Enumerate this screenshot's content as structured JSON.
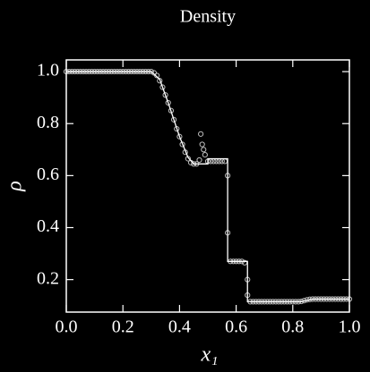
{
  "chart_data": {
    "type": "line-scatter",
    "title": "Density",
    "xlabel": "x₁",
    "ylabel": "ρ",
    "xlim": [
      0,
      1
    ],
    "ylim": [
      0.075,
      1.045
    ],
    "xticks": [
      {
        "value": 0,
        "label": "0.0"
      },
      0.2,
      0.4,
      0.6,
      0.8,
      {
        "value": 1,
        "label": "1.0"
      }
    ],
    "yticks": [
      0.2,
      0.4,
      0.6,
      0.8,
      {
        "value": 1,
        "label": "1.0"
      }
    ],
    "line": {
      "color": "#ffffff",
      "x": [
        0,
        0.3,
        0.33,
        0.36,
        0.4,
        0.43,
        0.45,
        0.5,
        0.5,
        0.57,
        0.57,
        0.64,
        0.64,
        0.83,
        0.87,
        1.0
      ],
      "y": [
        1,
        1,
        0.97,
        0.88,
        0.75,
        0.67,
        0.645,
        0.645,
        0.665,
        0.665,
        0.27,
        0.27,
        0.115,
        0.115,
        0.125,
        0.125
      ]
    },
    "points": {
      "color": "#bdbdbd",
      "x": [
        0,
        0.01,
        0.02,
        0.03,
        0.04,
        0.05,
        0.06,
        0.07,
        0.08,
        0.09,
        0.1,
        0.11,
        0.12,
        0.13,
        0.14,
        0.15,
        0.16,
        0.17,
        0.18,
        0.19,
        0.2,
        0.21,
        0.22,
        0.23,
        0.24,
        0.25,
        0.26,
        0.27,
        0.28,
        0.29,
        0.3,
        0.31,
        0.32,
        0.33,
        0.34,
        0.35,
        0.36,
        0.37,
        0.38,
        0.39,
        0.4,
        0.41,
        0.42,
        0.43,
        0.44,
        0.45,
        0.46,
        0.47,
        0.48,
        0.49,
        0.5,
        0.51,
        0.52,
        0.53,
        0.54,
        0.55,
        0.56,
        0.57,
        0.58,
        0.59,
        0.6,
        0.61,
        0.62,
        0.63,
        0.64,
        0.65,
        0.66,
        0.67,
        0.68,
        0.69,
        0.7,
        0.71,
        0.72,
        0.73,
        0.74,
        0.75,
        0.76,
        0.77,
        0.78,
        0.79,
        0.8,
        0.81,
        0.82,
        0.83,
        0.84,
        0.85,
        0.86,
        0.87,
        0.88,
        0.89,
        0.9,
        0.91,
        0.92,
        0.93,
        0.94,
        0.95,
        0.96,
        0.97,
        0.98,
        0.99,
        1.0,
        0.475,
        0.485,
        0.57,
        0.64
      ],
      "y": [
        1,
        1,
        1,
        1,
        1,
        1,
        1,
        1,
        1,
        1,
        1,
        1,
        1,
        1,
        1,
        1,
        1,
        1,
        1,
        1,
        1,
        1,
        1,
        1,
        1,
        1,
        1,
        1,
        1,
        1,
        1,
        0.995,
        0.985,
        0.965,
        0.94,
        0.91,
        0.88,
        0.85,
        0.815,
        0.78,
        0.75,
        0.72,
        0.69,
        0.665,
        0.65,
        0.645,
        0.645,
        0.66,
        0.72,
        0.68,
        0.655,
        0.655,
        0.655,
        0.655,
        0.655,
        0.655,
        0.655,
        0.6,
        0.27,
        0.27,
        0.27,
        0.27,
        0.27,
        0.265,
        0.2,
        0.115,
        0.115,
        0.115,
        0.115,
        0.115,
        0.115,
        0.115,
        0.115,
        0.115,
        0.115,
        0.115,
        0.115,
        0.115,
        0.115,
        0.115,
        0.115,
        0.115,
        0.115,
        0.116,
        0.119,
        0.122,
        0.124,
        0.125,
        0.125,
        0.125,
        0.125,
        0.125,
        0.125,
        0.125,
        0.125,
        0.125,
        0.125,
        0.125,
        0.125,
        0.125,
        0.125,
        0.76,
        0.7,
        0.38,
        0.14
      ]
    }
  }
}
